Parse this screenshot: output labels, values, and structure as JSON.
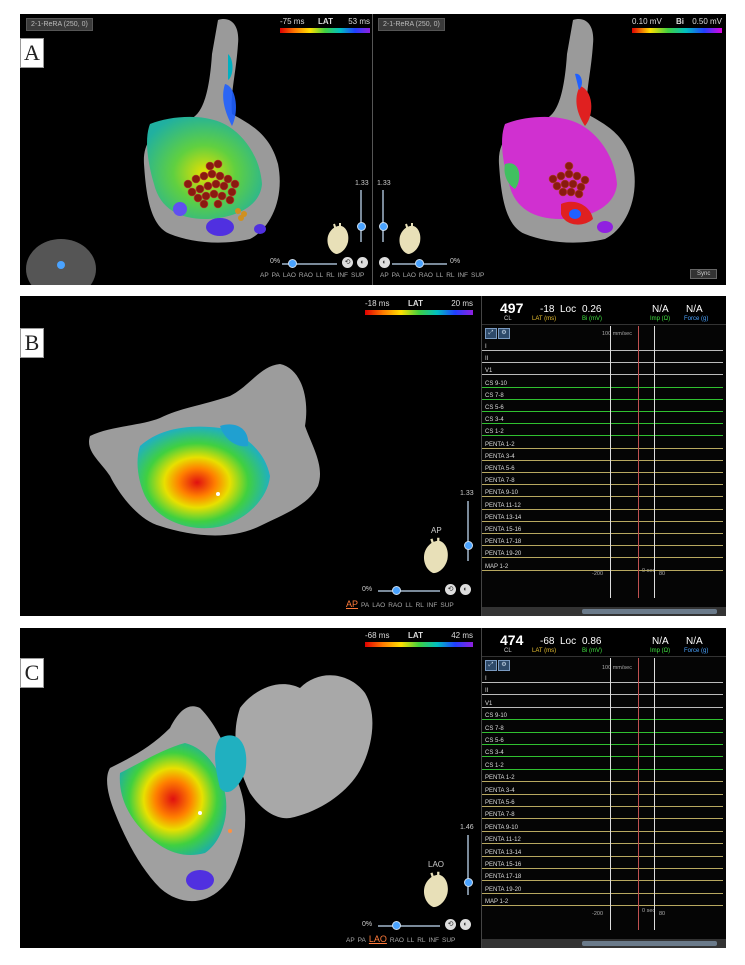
{
  "panelA": {
    "label": "A",
    "left_title": "2-1-ReRA (250, 0)",
    "right_title": "2-1-ReRA (250, 0)",
    "lat_scale": {
      "min": "-75 ms",
      "label": "LAT",
      "max": "53 ms"
    },
    "bi_scale": {
      "min": "0.10 mV",
      "label": "Bi",
      "max": "0.50 mV"
    },
    "zoom_left": "1.33",
    "zoom_right": "1.33",
    "zero_left": "0%",
    "zero_right": "0%",
    "views_left": [
      "AP",
      "PA",
      "LAO",
      "RAO",
      "LL",
      "RL",
      "INF",
      "SUP"
    ],
    "views_right": [
      "AP",
      "PA",
      "LAO",
      "RAO",
      "LL",
      "RL",
      "INF",
      "SUP"
    ],
    "sync_label": "Sync"
  },
  "panelB": {
    "label": "B",
    "lat_scale": {
      "min": "-18 ms",
      "label": "LAT",
      "max": "20 ms"
    },
    "zoom": "1.33",
    "zero": "0%",
    "orientation": "AP",
    "views": [
      "AP",
      "PA",
      "LAO",
      "RAO",
      "LL",
      "RL",
      "INF",
      "SUP"
    ],
    "active_view": "AP",
    "ecg": {
      "cl_value": "497",
      "cl_label": "CL",
      "lat_value": "-18",
      "lat_label": "LAT (ms)",
      "loc_label": "Loc",
      "bi_value": "0.26",
      "bi_label": "Bi (mV)",
      "imp_value": "N/A",
      "imp_label": "Imp (Ω)",
      "force_value": "N/A",
      "force_label": "Force (g)",
      "speed": "100 mm/sec",
      "channels": [
        "I",
        "II",
        "V1",
        "CS 9-10",
        "CS 7-8",
        "CS 5-6",
        "CS 3-4",
        "CS 1-2",
        "PENTA 1-2",
        "PENTA 3-4",
        "PENTA 5-6",
        "PENTA 7-8",
        "PENTA 9-10",
        "PENTA 11-12",
        "PENTA 13-14",
        "PENTA 15-16",
        "PENTA 17-18",
        "PENTA 19-20",
        "MAP 1-2"
      ],
      "t_left": "-200",
      "t_right": "80",
      "t_mid": "0 sec"
    }
  },
  "panelC": {
    "label": "C",
    "lat_scale": {
      "min": "-68 ms",
      "label": "LAT",
      "max": "42 ms"
    },
    "zoom": "1.46",
    "zero": "0%",
    "orientation": "LAO",
    "views": [
      "AP",
      "PA",
      "LAO",
      "RAO",
      "LL",
      "RL",
      "INF",
      "SUP"
    ],
    "active_view": "LAO",
    "ecg": {
      "cl_value": "474",
      "cl_label": "CL",
      "lat_value": "-68",
      "lat_label": "LAT (ms)",
      "loc_label": "Loc",
      "bi_value": "0.86",
      "bi_label": "Bi (mV)",
      "imp_value": "N/A",
      "imp_label": "Imp (Ω)",
      "force_value": "N/A",
      "force_label": "Force (g)",
      "speed": "100 mm/sec",
      "channels": [
        "I",
        "II",
        "V1",
        "CS 9-10",
        "CS 7-8",
        "CS 5-6",
        "CS 3-4",
        "CS 1-2",
        "PENTA 1-2",
        "PENTA 3-4",
        "PENTA 5-6",
        "PENTA 7-8",
        "PENTA 9-10",
        "PENTA 11-12",
        "PENTA 13-14",
        "PENTA 15-16",
        "PENTA 17-18",
        "PENTA 19-20",
        "MAP 1-2"
      ],
      "t_left": "-200",
      "t_right": "80",
      "t_mid": "0 sec"
    }
  }
}
